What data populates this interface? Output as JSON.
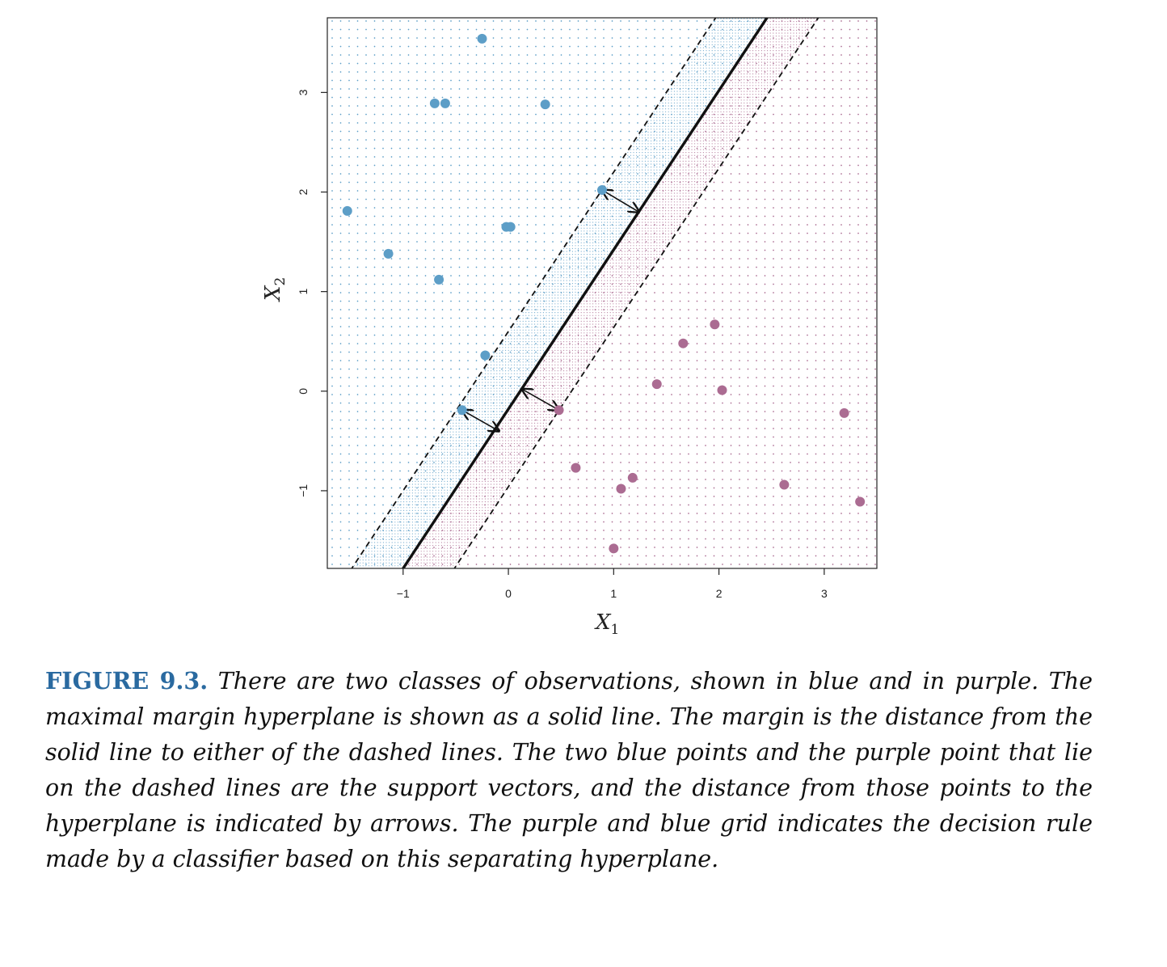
{
  "figure": {
    "label": "FIGURE 9.3.",
    "caption": "There are two classes of observations, shown in blue and in pur­ple. The maximal margin hyperplane is shown as a solid line. The margin is the distance from the solid line to either of the dashed lines. The two blue points and the purple point that lie on the dashed lines are the support vectors, and the dis­tance from those points to the hyperplane is indicated by arrows. The purple and blue grid indicates the decision rule made by a classifier based on this separating hyperplane."
  },
  "colors": {
    "blue": "#5d9ec7",
    "purple": "#ab6c92",
    "label_blue": "#2a6aa0"
  },
  "chart_data": {
    "type": "scatter",
    "title": "",
    "xlabel": "X",
    "xlabel_sub": "1",
    "ylabel": "X",
    "ylabel_sub": "2",
    "xlim": [
      -1.72,
      3.5
    ],
    "ylim": [
      -1.78,
      3.75
    ],
    "xticks": [
      -1,
      0,
      1,
      2,
      3
    ],
    "yticks": [
      -1,
      0,
      1,
      2,
      3
    ],
    "series": [
      {
        "class": "blue",
        "points": [
          [
            -0.25,
            3.54
          ],
          [
            -0.7,
            2.89
          ],
          [
            -0.6,
            2.89
          ],
          [
            0.35,
            2.88
          ],
          [
            -1.53,
            1.81
          ],
          [
            -1.14,
            1.38
          ],
          [
            -0.66,
            1.12
          ],
          [
            -0.02,
            1.65
          ],
          [
            0.02,
            1.65
          ],
          [
            -0.22,
            0.36
          ],
          [
            0.89,
            2.02
          ],
          [
            -0.44,
            -0.19
          ]
        ]
      },
      {
        "class": "purple",
        "points": [
          [
            1.96,
            0.67
          ],
          [
            1.66,
            0.48
          ],
          [
            1.41,
            0.07
          ],
          [
            2.03,
            0.01
          ],
          [
            3.19,
            -0.22
          ],
          [
            0.48,
            -0.19
          ],
          [
            0.64,
            -0.77
          ],
          [
            1.18,
            -0.87
          ],
          [
            1.07,
            -0.98
          ],
          [
            2.62,
            -0.94
          ],
          [
            3.34,
            -1.11
          ],
          [
            1.0,
            -1.58
          ]
        ]
      }
    ],
    "hyperplane": {
      "slope": 1.6,
      "intercept": -0.18
    },
    "margin_lines": {
      "slope": 1.6,
      "intercepts": [
        0.6,
        -0.96
      ]
    },
    "support_arrows": [
      {
        "from": [
          0.89,
          2.02
        ],
        "to": [
          1.24,
          1.8
        ]
      },
      {
        "from": [
          -0.44,
          -0.19
        ],
        "to": [
          -0.09,
          -0.4
        ]
      },
      {
        "from": [
          0.48,
          -0.19
        ],
        "to": [
          0.13,
          0.02
        ]
      }
    ]
  }
}
